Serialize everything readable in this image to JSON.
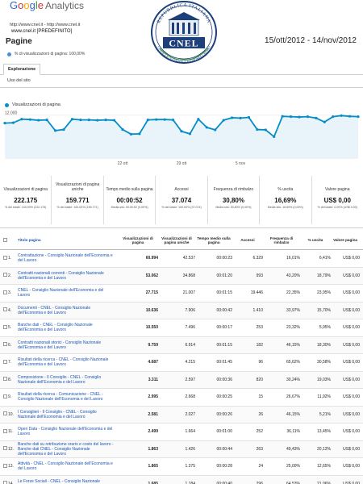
{
  "header": {
    "logo_google": [
      "G",
      "o",
      "o",
      "g",
      "l",
      "e"
    ],
    "logo_analytics": "Analytics",
    "property_urls": "http://www.cnel.it - http://www.cnel.it",
    "property_domain": "www.cnel.it [PREDEFINITO]",
    "date_range": "15/ott/2012 - 14/nov/2012",
    "seal": {
      "top_text": "REPUBBLICA ITALIANA",
      "name": "CNEL",
      "bottom_text": "CONSIGLIO NAZIONALE ECONOMIA LAVORO"
    }
  },
  "page": {
    "title": "Pagine",
    "segment": "% di visualizzazioni di pagina: 100,00%"
  },
  "tabs": {
    "explore": "Esplorazione",
    "subtab": "Uso del sito"
  },
  "chart_data": {
    "type": "line",
    "series": [
      {
        "name": "Visualizzazioni di pagina",
        "values": [
          9800,
          9900,
          10900,
          10800,
          10600,
          10700,
          7700,
          8000,
          10900,
          10700,
          10700,
          10600,
          10700,
          10600,
          8000,
          6700,
          6800,
          10700,
          10800,
          10800,
          10700,
          7500,
          6800,
          10900,
          8600,
          7900,
          10600,
          11300,
          11200,
          11400,
          8000,
          7900,
          6000,
          11700,
          11600,
          11500,
          11600,
          11200,
          10100,
          11600,
          11900,
          11700,
          11600
        ]
      }
    ],
    "x_ticks": [
      "22 ott",
      "29 ott",
      "5 nov"
    ],
    "y_ticks": [
      "12.000",
      "6.000"
    ],
    "ylim": [
      0,
      14000
    ],
    "color": "#058dc7"
  },
  "metrics": [
    {
      "label": "Visualizzazioni di pagina",
      "value": "222.175",
      "sub": "% del totale: 100,00% (222.175)"
    },
    {
      "label": "Visualizzazioni di pagina uniche",
      "value": "159.771",
      "sub": "% del totale: 100,00% (159.771)"
    },
    {
      "label": "Tempo medio sulla pagina",
      "value": "00:00:52",
      "sub": "Media sito: 00:00:52 (0,00%)"
    },
    {
      "label": "Accessi",
      "value": "37.074",
      "sub": "% del totale: 100,00% (37.074)"
    },
    {
      "label": "Frequenza di rimbalzo",
      "value": "30,80%",
      "sub": "Media sito: 30,80% (0,00%)"
    },
    {
      "label": "% uscita",
      "value": "16,69%",
      "sub": "Media sito: 16,69% (0,00%)"
    },
    {
      "label": "Valore pagina",
      "value": "US$ 0,00",
      "sub": "% del totale: 0,00% (US$ 0,00)"
    }
  ],
  "table": {
    "headers": [
      "Titolo pagina",
      "Visualizzazioni di pagina",
      "Visualizzazioni di pagina uniche",
      "Tempo medio sulla pagina",
      "Accessi",
      "Frequenza di rimbalzo",
      "% uscita",
      "Valore pagina"
    ],
    "rows": [
      {
        "n": "1.",
        "title": "Contrattazione - Consiglio Nazionale dell'Economia e del Lavoro",
        "v": [
          "60.994",
          "42.537",
          "00:00:23",
          "6.329",
          "16,01%",
          "6,41%",
          "US$ 0,00"
        ]
      },
      {
        "n": "2.",
        "title": "Contratti nazionali correnti - Consiglio Nazionale dell'Economia e del Lavoro",
        "v": [
          "53.062",
          "34.868",
          "00:01:20",
          "993",
          "43,20%",
          "18,79%",
          "US$ 0,00"
        ]
      },
      {
        "n": "3.",
        "title": "CNEL - Consiglio Nazionale dell'Economia e del Lavoro",
        "v": [
          "27.715",
          "21.007",
          "00:01:15",
          "19.446",
          "22,35%",
          "23,95%",
          "US$ 0,00"
        ]
      },
      {
        "n": "4.",
        "title": "Documenti - CNEL - Consiglio Nazionale dell'Economia e del Lavoro",
        "v": [
          "10.636",
          "7.906",
          "00:00:42",
          "1.410",
          "33,97%",
          "15,70%",
          "US$ 0,00"
        ]
      },
      {
        "n": "5.",
        "title": "Banche dati - CNEL - Consiglio Nazionale dell'Economia e del Lavoro",
        "v": [
          "10.550",
          "7.496",
          "00:00:17",
          "253",
          "23,32%",
          "5,95%",
          "US$ 0,00"
        ]
      },
      {
        "n": "6.",
        "title": "Contratti nazionali storici - Consiglio Nazionale dell'Economia e del Lavoro",
        "v": [
          "9.759",
          "6.914",
          "00:01:15",
          "182",
          "46,15%",
          "18,30%",
          "US$ 0,00"
        ]
      },
      {
        "n": "7.",
        "title": "Risultati della ricerca - CNEL - Consiglio Nazionale dell'Economia e del Lavoro",
        "v": [
          "4.687",
          "4.215",
          "00:01:45",
          "96",
          "65,62%",
          "30,58%",
          "US$ 0,00"
        ]
      },
      {
        "n": "8.",
        "title": "Composizione - Il Consiglio - CNEL - Consiglio Nazionale dell'Economia e del Lavoro",
        "v": [
          "3.311",
          "2.597",
          "00:00:36",
          "820",
          "30,24%",
          "19,03%",
          "US$ 0,00"
        ]
      },
      {
        "n": "9.",
        "title": "Risultati della ricerca - Comunicazione - CNEL - Consiglio Nazionale dell'Economia e del Lavoro",
        "v": [
          "2.995",
          "2.668",
          "00:00:25",
          "15",
          "26,67%",
          "11,92%",
          "US$ 0,00"
        ]
      },
      {
        "n": "10.",
        "title": "I Consiglieri - Il Consiglio - CNEL - Consiglio Nazionale dell'Economia e del Lavoro",
        "v": [
          "2.581",
          "2.027",
          "00:00:26",
          "26",
          "46,15%",
          "5,21%",
          "US$ 0,00"
        ]
      },
      {
        "n": "11.",
        "title": "Open Data - Consiglio Nazionale dell'Economia e del Lavoro",
        "v": [
          "2.499",
          "1.664",
          "00:01:00",
          "252",
          "36,11%",
          "13,45%",
          "US$ 0,00"
        ]
      },
      {
        "n": "12.",
        "title": "Banche dati su retribuzione orario e costo del lavoro - Banche dati CNEL - Consiglio Nazionale dell'Economia e del Lavoro",
        "v": [
          "1.863",
          "1.426",
          "00:00:44",
          "263",
          "49,43%",
          "20,12%",
          "US$ 0,00"
        ]
      },
      {
        "n": "13.",
        "title": "Attività - CNEL - Consiglio Nazionale dell'Economia e del Lavoro",
        "v": [
          "1.865",
          "1.375",
          "00:00:28",
          "24",
          "25,00%",
          "12,65%",
          "US$ 0,00"
        ]
      },
      {
        "n": "14.",
        "title": "Le Forze Sociali - CNEL - Consiglio Nazionale dell'Economia e del Lavoro",
        "v": [
          "1.685",
          "1.184",
          "00:00:40",
          "296",
          "64,53%",
          "21,06%",
          "US$ 0,00"
        ]
      }
    ]
  }
}
